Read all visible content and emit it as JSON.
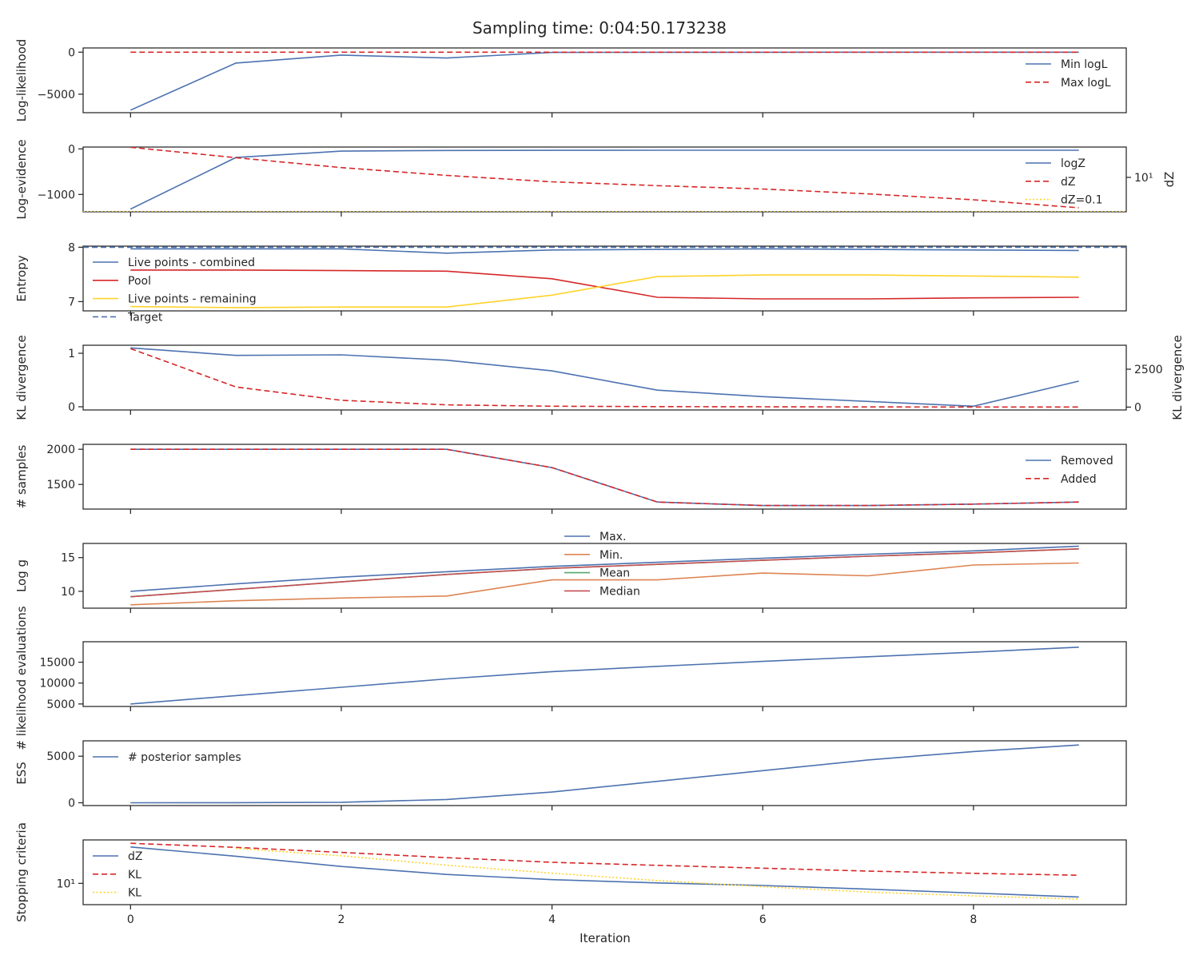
{
  "figure": {
    "title": "Sampling time: 0:04:50.173238",
    "xlabel": "Iteration",
    "x_ticks": [
      0,
      2,
      4,
      6,
      8
    ],
    "xlim": [
      -0.45,
      9.45
    ]
  },
  "chart_data": [
    {
      "type": "line",
      "ylabel": "Log-likelihood",
      "ylim": [
        -7200,
        500
      ],
      "y_ticks": [
        0,
        -5000
      ],
      "y_tick_labels": [
        "0",
        "−5000"
      ],
      "legend": "top-right",
      "x": [
        0,
        1,
        2,
        3,
        4,
        5,
        6,
        7,
        8,
        9
      ],
      "series": [
        {
          "name": "Min logL",
          "color": "#4c72b0",
          "dash": "solid",
          "values": [
            -6900,
            -1300,
            -350,
            -700,
            -30,
            -15,
            -10,
            -8,
            -6,
            -5
          ]
        },
        {
          "name": "Max logL",
          "color": "#d62728",
          "dash": "dashed",
          "values": [
            0,
            0,
            0,
            0,
            0,
            0,
            0,
            0,
            0,
            0
          ]
        }
      ]
    },
    {
      "type": "line",
      "ylabel": "Log-evidence",
      "ylim": [
        -1380,
        40
      ],
      "y_ticks": [
        0,
        -1000
      ],
      "y_tick_labels": [
        "0",
        "−1000"
      ],
      "right_ylabel": "dZ",
      "right_scale": "log",
      "right_ylim": [
        0.1,
        580
      ],
      "right_ticks": [
        10
      ],
      "right_tick_labels": [
        "10¹"
      ],
      "legend": "top-right",
      "x": [
        0,
        1,
        2,
        3,
        4,
        5,
        6,
        7,
        8,
        9
      ],
      "series": [
        {
          "name": "logZ",
          "color": "#4c72b0",
          "dash": "solid",
          "axis": "left",
          "values": [
            -1320,
            -190,
            -50,
            -35,
            -32,
            -30,
            -30,
            -30,
            -30,
            -30
          ]
        },
        {
          "name": "dZ",
          "color": "#d62728",
          "dash": "dashed",
          "axis": "right",
          "values": [
            560,
            140,
            37,
            13,
            5.5,
            3.3,
            2.1,
            1.1,
            0.5,
            0.17
          ]
        },
        {
          "name": "dZ=0.1",
          "color": "#ffd32a",
          "dash": "dotted",
          "axis": "right",
          "values": [
            0.1,
            0.1,
            0.1,
            0.1,
            0.1,
            0.1,
            0.1,
            0.1,
            0.1,
            0.1
          ]
        }
      ]
    },
    {
      "type": "line",
      "ylabel": "Entropy",
      "ylim": [
        6.83,
        8.02
      ],
      "y_ticks": [
        7,
        8
      ],
      "y_tick_labels": [
        "7",
        "8"
      ],
      "legend": "left",
      "x": [
        0,
        1,
        2,
        3,
        4,
        5,
        6,
        7,
        8,
        9
      ],
      "series": [
        {
          "name": "Live points - combined",
          "color": "#4c72b0",
          "dash": "solid",
          "values": [
            7.97,
            7.97,
            7.97,
            7.89,
            7.95,
            7.96,
            7.97,
            7.96,
            7.95,
            7.94
          ]
        },
        {
          "name": "Pool",
          "color": "#d62728",
          "dash": "solid",
          "values": [
            7.58,
            7.58,
            7.57,
            7.56,
            7.42,
            7.08,
            7.05,
            7.05,
            7.07,
            7.08
          ]
        },
        {
          "name": "Live points - remaining",
          "color": "#ffd32a",
          "dash": "solid",
          "values": [
            6.91,
            6.89,
            6.9,
            6.9,
            7.12,
            7.46,
            7.49,
            7.49,
            7.47,
            7.45
          ]
        },
        {
          "name": "Target",
          "color": "#4c72b0",
          "dash": "dashed",
          "values": [
            8.0,
            8.0,
            8.0,
            8.0,
            8.0,
            8.0,
            8.0,
            8.0,
            8.0,
            8.0
          ]
        }
      ]
    },
    {
      "type": "line",
      "ylabel": "KL divergence",
      "ylim": [
        -0.06,
        1.15
      ],
      "y_ticks": [
        0,
        1
      ],
      "y_tick_labels": [
        "0",
        "1"
      ],
      "right_ylabel": "KL divergence",
      "right_ylim": [
        -190,
        4080
      ],
      "right_ticks": [
        0,
        2500
      ],
      "right_tick_labels": [
        "0",
        "2500"
      ],
      "x": [
        0,
        1,
        2,
        3,
        4,
        5,
        6,
        7,
        8,
        9
      ],
      "series": [
        {
          "name": "KL divergence",
          "color": "#4c72b0",
          "dash": "solid",
          "axis": "left",
          "values": [
            1.1,
            0.96,
            0.97,
            0.87,
            0.67,
            0.31,
            0.19,
            0.1,
            0.01,
            0.48
          ]
        },
        {
          "name": "KL divergence (right)",
          "color": "#d62728",
          "dash": "dashed",
          "axis": "right",
          "values": [
            3860,
            1330,
            450,
            150,
            60,
            30,
            20,
            10,
            5,
            3
          ]
        }
      ]
    },
    {
      "type": "line",
      "ylabel": "# samples",
      "ylim": [
        1150,
        2070
      ],
      "y_ticks": [
        1500,
        2000
      ],
      "y_tick_labels": [
        "1500",
        "2000"
      ],
      "legend": "top-right",
      "x": [
        0,
        1,
        2,
        3,
        4,
        5,
        6,
        7,
        8,
        9
      ],
      "series": [
        {
          "name": "Removed",
          "color": "#4c72b0",
          "dash": "solid",
          "values": [
            2000,
            2000,
            2000,
            2000,
            1740,
            1250,
            1200,
            1200,
            1220,
            1250
          ]
        },
        {
          "name": "Added",
          "color": "#d62728",
          "dash": "dashed",
          "values": [
            2000,
            2000,
            2000,
            2000,
            1740,
            1250,
            1200,
            1200,
            1220,
            1250
          ]
        }
      ]
    },
    {
      "type": "line",
      "ylabel": "Log g",
      "ylim": [
        7.5,
        17.1
      ],
      "y_ticks": [
        10,
        15
      ],
      "y_tick_labels": [
        "10",
        "15"
      ],
      "legend": "top-center",
      "x": [
        0,
        1,
        2,
        3,
        4,
        5,
        6,
        7,
        8,
        9
      ],
      "series": [
        {
          "name": "Max.",
          "color": "#4c72b0",
          "dash": "solid",
          "values": [
            10.0,
            11.1,
            12.1,
            12.9,
            13.7,
            14.3,
            14.9,
            15.5,
            16.0,
            16.7
          ]
        },
        {
          "name": "Min.",
          "color": "#dd8452",
          "dash": "solid",
          "values": [
            8.0,
            8.6,
            9.0,
            9.3,
            11.7,
            11.7,
            12.7,
            12.3,
            13.9,
            14.2
          ]
        },
        {
          "name": "Mean",
          "color": "#55a868",
          "dash": "solid",
          "values": [
            9.2,
            10.3,
            11.4,
            12.5,
            13.4,
            14.0,
            14.6,
            15.2,
            15.7,
            16.3
          ]
        },
        {
          "name": "Median",
          "color": "#c44e52",
          "dash": "solid",
          "values": [
            9.2,
            10.3,
            11.4,
            12.5,
            13.4,
            14.0,
            14.6,
            15.2,
            15.7,
            16.3
          ]
        }
      ]
    },
    {
      "type": "line",
      "ylabel": "# likelihood evaluations",
      "ylim": [
        4400,
        19900
      ],
      "y_ticks": [
        5000,
        10000,
        15000
      ],
      "y_tick_labels": [
        "5000",
        "10000",
        "15000"
      ],
      "x": [
        0,
        1,
        2,
        3,
        4,
        5,
        6,
        7,
        8,
        9
      ],
      "series": [
        {
          "name": "# likelihood evaluations",
          "color": "#4c72b0",
          "dash": "solid",
          "values": [
            5000,
            7000,
            9000,
            11000,
            12750,
            14000,
            15200,
            16300,
            17400,
            18600
          ]
        }
      ]
    },
    {
      "type": "line",
      "ylabel": "ESS",
      "ylim": [
        -300,
        6650
      ],
      "y_ticks": [
        0,
        5000
      ],
      "y_tick_labels": [
        "0",
        "5000"
      ],
      "legend": "top-left",
      "x": [
        0,
        1,
        2,
        3,
        4,
        5,
        6,
        7,
        8,
        9
      ],
      "series": [
        {
          "name": "# posterior samples",
          "color": "#4c72b0",
          "dash": "solid",
          "values": [
            0,
            10,
            50,
            350,
            1150,
            2300,
            3450,
            4600,
            5500,
            6200
          ]
        }
      ]
    },
    {
      "type": "line",
      "ylabel": "Stopping criteria",
      "yscale": "log",
      "ylim": [
        3.5,
        85
      ],
      "y_ticks": [
        10
      ],
      "y_tick_labels": [
        "10¹"
      ],
      "legend": "left",
      "x": [
        0,
        1,
        2,
        3,
        4,
        5,
        6,
        7,
        8,
        9
      ],
      "series": [
        {
          "name": "dZ",
          "color": "#4c72b0",
          "dash": "solid",
          "values": [
            60,
            38,
            23,
            15.5,
            12,
            10.2,
            9,
            7.5,
            6.2,
            5.1
          ]
        },
        {
          "name": "KL",
          "color": "#d62728",
          "dash": "dashed",
          "values": [
            72,
            59,
            46,
            35.5,
            28.2,
            24.3,
            21.1,
            18.3,
            16.4,
            14.9
          ]
        },
        {
          "name": "KL",
          "color": "#ffd32a",
          "dash": "dotted",
          "values": [
            null,
            56,
            39,
            24.5,
            16.5,
            11.5,
            8.5,
            6.5,
            5.4,
            4.6
          ]
        }
      ]
    }
  ]
}
